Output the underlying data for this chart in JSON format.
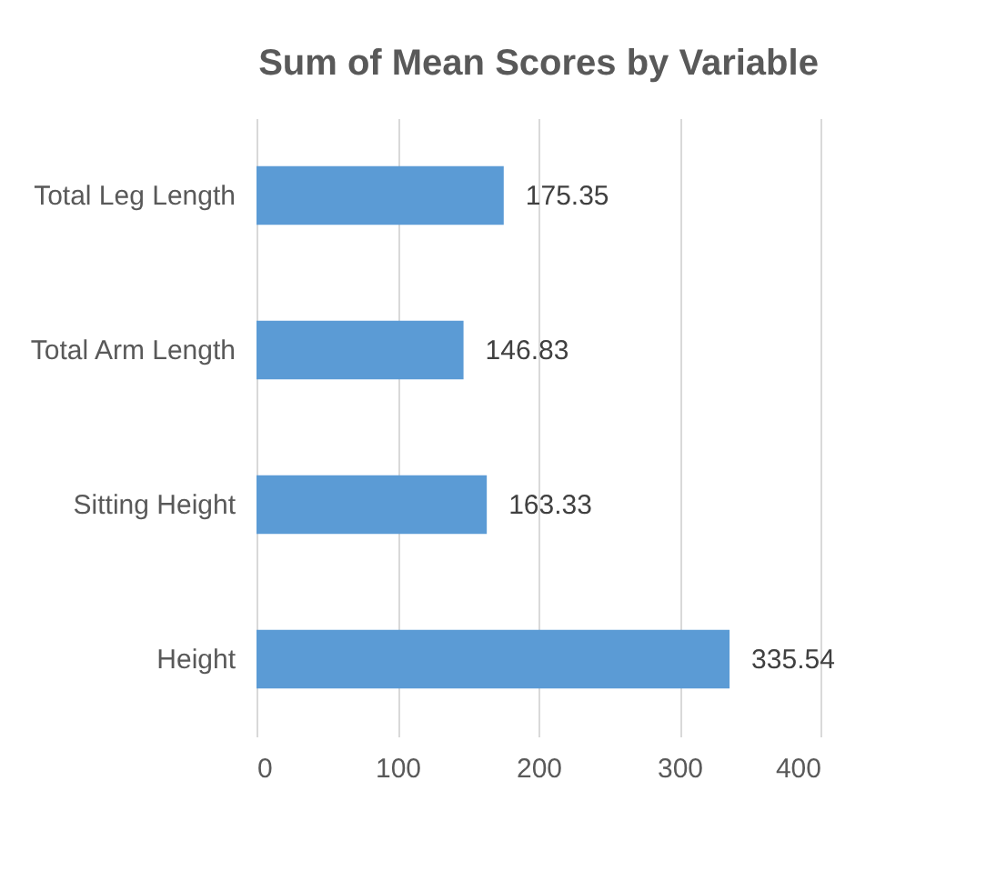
{
  "chart_data": {
    "type": "bar",
    "orientation": "horizontal",
    "title": "Sum of Mean Scores by Variable",
    "categories": [
      "Total Leg Length",
      "Total Arm Length",
      "Sitting Height",
      "Height"
    ],
    "values": [
      175.35,
      146.83,
      163.33,
      335.54
    ],
    "color": "#5b9bd5",
    "xlim": [
      0,
      400
    ],
    "xticks": [
      0,
      100,
      200,
      300,
      400
    ],
    "grid": "x",
    "data_labels": true
  }
}
